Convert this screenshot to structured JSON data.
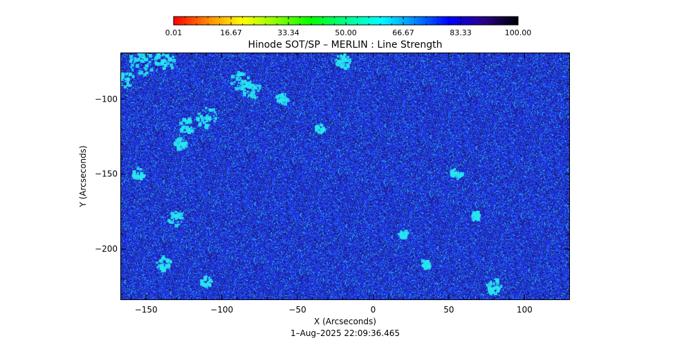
{
  "chart_data": {
    "type": "heatmap",
    "title": "Hinode SOT/SP – MERLIN : Line Strength",
    "xlabel": "X (Arcseconds)",
    "ylabel": "Y (Arcseconds)",
    "xlim": [
      -167,
      130
    ],
    "ylim": [
      -234,
      -69
    ],
    "x_ticks": [
      {
        "value": -150,
        "label": "−150"
      },
      {
        "value": -100,
        "label": "−100"
      },
      {
        "value": -50,
        "label": "−50"
      },
      {
        "value": 0,
        "label": "0"
      },
      {
        "value": 50,
        "label": "50"
      },
      {
        "value": 100,
        "label": "100"
      }
    ],
    "y_ticks": [
      {
        "value": -100,
        "label": "−100"
      },
      {
        "value": -150,
        "label": "−150"
      },
      {
        "value": -200,
        "label": "−200"
      }
    ],
    "colorbar": {
      "min": 0.01,
      "max": 100.0,
      "tick_labels": [
        "0.01",
        "16.67",
        "33.34",
        "50.00",
        "66.67",
        "83.33",
        "100.00"
      ],
      "colormap": [
        "#ff0000",
        "#ff8800",
        "#ffff00",
        "#88ff00",
        "#00ff00",
        "#00ff88",
        "#00ffff",
        "#0088ff",
        "#0000ff",
        "#2a0088",
        "#000000"
      ]
    },
    "field": {
      "dominant_value": 85,
      "bright_patch_value": 62,
      "dark_value": 97,
      "colors": {
        "bright": "#28e6f0",
        "mid": "#1f6cf2",
        "base": "#1f2fe6",
        "dark": "#1a1a7a",
        "darkest": "#25104a"
      },
      "bright_patches": [
        {
          "x": -152,
          "y": -75,
          "r": 9
        },
        {
          "x": -138,
          "y": -75,
          "r": 7
        },
        {
          "x": -163,
          "y": -87,
          "r": 5
        },
        {
          "x": -88,
          "y": -88,
          "r": 6
        },
        {
          "x": -80,
          "y": -94,
          "r": 6
        },
        {
          "x": -110,
          "y": -112,
          "r": 7
        },
        {
          "x": -123,
          "y": -118,
          "r": 5
        },
        {
          "x": -127,
          "y": -130,
          "r": 4
        },
        {
          "x": -20,
          "y": -75,
          "r": 5
        },
        {
          "x": -60,
          "y": -100,
          "r": 4
        },
        {
          "x": -155,
          "y": -150,
          "r": 4
        },
        {
          "x": -130,
          "y": -180,
          "r": 5
        },
        {
          "x": -138,
          "y": -210,
          "r": 5
        },
        {
          "x": -110,
          "y": -222,
          "r": 4
        },
        {
          "x": 55,
          "y": -150,
          "r": 4
        },
        {
          "x": 68,
          "y": -178,
          "r": 3
        },
        {
          "x": 80,
          "y": -225,
          "r": 5
        },
        {
          "x": 20,
          "y": -190,
          "r": 3
        },
        {
          "x": -35,
          "y": -120,
          "r": 3
        },
        {
          "x": 35,
          "y": -210,
          "r": 3
        }
      ]
    }
  },
  "footer": {
    "timestamp": "1–Aug–2025 22:09:36.465"
  }
}
